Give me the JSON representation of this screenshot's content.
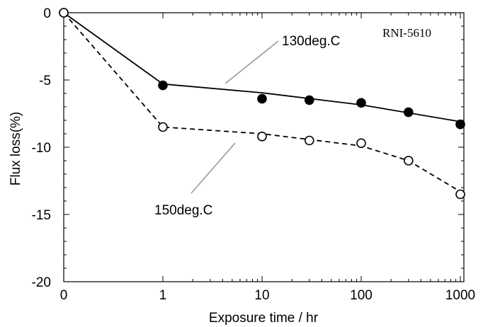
{
  "chart_data": {
    "type": "line",
    "title": "",
    "xlabel": "Exposure time / hr",
    "ylabel": "Flux loss(%)",
    "x_ticks": [
      "0",
      "1",
      "10",
      "100",
      "1000"
    ],
    "y_ticks": [
      "0",
      "-5",
      "-10",
      "-15",
      "-20"
    ],
    "ylim": [
      -20,
      0
    ],
    "x_scale": "zero then log10",
    "grid": false,
    "legend": "none",
    "annotations": {
      "label_box": "RNI-5610"
    },
    "series": [
      {
        "name": "130deg.C",
        "marker": "filled-circle",
        "line_style": "solid",
        "color": "#000000",
        "points": [
          {
            "x": 0,
            "y": 0
          },
          {
            "x": 1,
            "y": -5.4
          },
          {
            "x": 10,
            "y": -6.4
          },
          {
            "x": 30,
            "y": -6.5
          },
          {
            "x": 100,
            "y": -6.7
          },
          {
            "x": 300,
            "y": -7.4
          },
          {
            "x": 1000,
            "y": -8.3
          }
        ],
        "fit": [
          {
            "x": 0,
            "y": 0
          },
          {
            "x": 1,
            "y": -5.3
          },
          {
            "x": 10,
            "y": -5.95
          },
          {
            "x": 100,
            "y": -6.85
          },
          {
            "x": 1000,
            "y": -8.1
          }
        ]
      },
      {
        "name": "150deg.C",
        "marker": "open-circle",
        "line_style": "dashed",
        "color": "#000000",
        "points": [
          {
            "x": 0,
            "y": 0
          },
          {
            "x": 1,
            "y": -8.5
          },
          {
            "x": 10,
            "y": -9.2
          },
          {
            "x": 30,
            "y": -9.5
          },
          {
            "x": 100,
            "y": -9.7
          },
          {
            "x": 300,
            "y": -11.0
          },
          {
            "x": 1000,
            "y": -13.5
          }
        ],
        "fit": [
          {
            "x": 0,
            "y": 0
          },
          {
            "x": 1,
            "y": -8.5
          },
          {
            "x": 10,
            "y": -9.0
          },
          {
            "x": 100,
            "y": -9.9
          },
          {
            "x": 300,
            "y": -11.0
          },
          {
            "x": 1000,
            "y": -13.3
          }
        ]
      }
    ]
  }
}
